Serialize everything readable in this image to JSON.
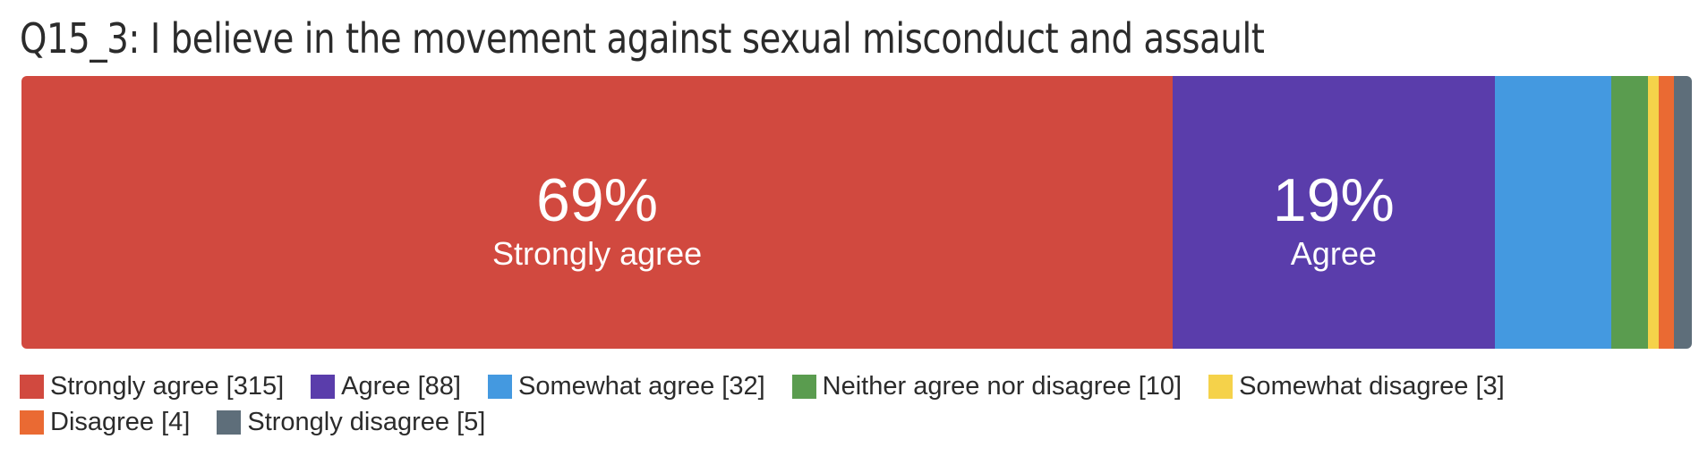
{
  "chart_data": {
    "type": "bar",
    "orientation": "horizontal",
    "stacked": true,
    "percent": true,
    "title": "Q15_3: I believe in the movement against sexual misconduct and assault",
    "categories": [
      "Strongly agree",
      "Agree",
      "Somewhat agree",
      "Neither agree nor disagree",
      "Somewhat disagree",
      "Disagree",
      "Strongly disagree"
    ],
    "values": [
      315,
      88,
      32,
      10,
      3,
      4,
      5
    ],
    "colors": [
      "#d1493f",
      "#5a3dab",
      "#4499e0",
      "#5a9c4f",
      "#f5d24a",
      "#ea6a33",
      "#5e6e7a"
    ],
    "segment_labels": [
      {
        "pct": "69%",
        "text": "Strongly agree"
      },
      {
        "pct": "19%",
        "text": "Agree"
      },
      null,
      null,
      null,
      null,
      null
    ],
    "legend": [
      "Strongly agree [315]",
      "Agree [88]",
      "Somewhat agree [32]",
      "Neither agree nor disagree [10]",
      "Somewhat disagree [3]",
      "Disagree [4]",
      "Strongly disagree [5]"
    ],
    "legend_position": "bottom"
  }
}
